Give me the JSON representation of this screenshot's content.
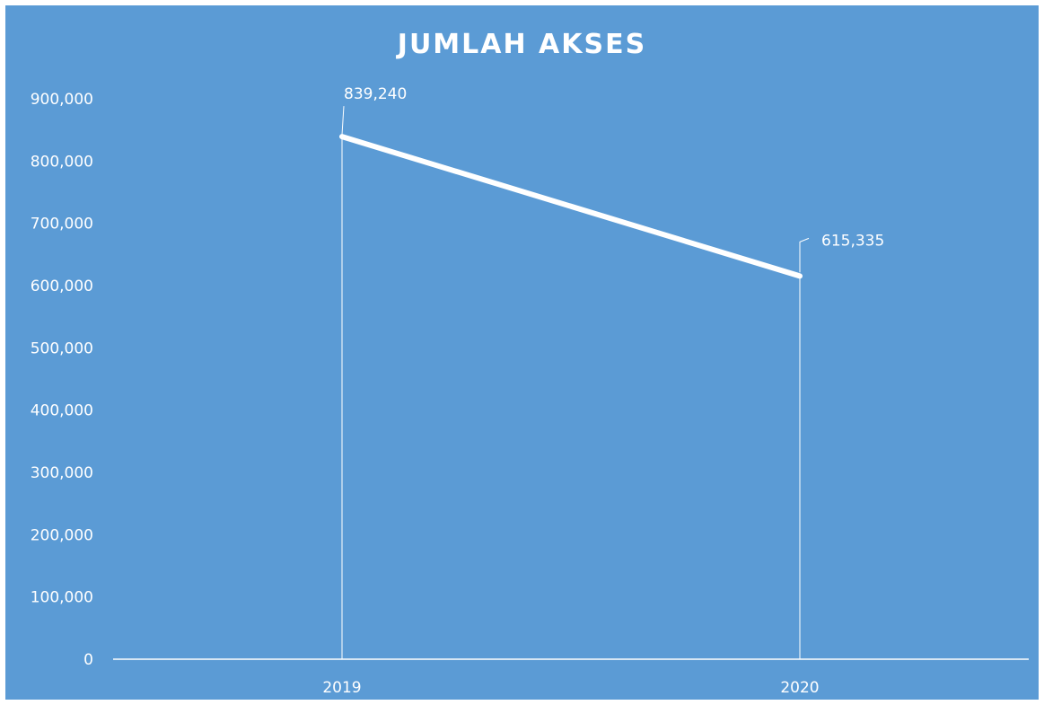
{
  "chart_data": {
    "type": "line",
    "title": "JUMLAH AKSES",
    "xlabel": "",
    "ylabel": "",
    "categories": [
      "2019",
      "2020"
    ],
    "series": [
      {
        "values": [
          839240,
          615335
        ],
        "data_labels": [
          "839,240",
          "615,335"
        ]
      }
    ],
    "ylim": [
      0,
      900000
    ],
    "y_ticks": [
      0,
      100000,
      200000,
      300000,
      400000,
      500000,
      600000,
      700000,
      800000,
      900000
    ],
    "y_tick_labels": [
      "0",
      "100,000",
      "200,000",
      "300,000",
      "400,000",
      "500,000",
      "600,000",
      "700,000",
      "800,000",
      "900,000"
    ],
    "drop_lines": true,
    "grid": false,
    "legend": "none",
    "colors": {
      "background": "#5b9bd5",
      "line": "#ffffff",
      "text": "#ffffff"
    }
  }
}
